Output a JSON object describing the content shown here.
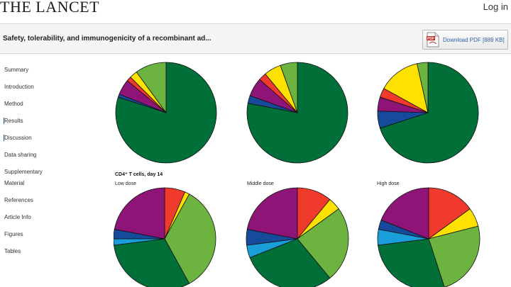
{
  "header": {
    "logo": "THE LANCET",
    "login_label": "Log in"
  },
  "article": {
    "title": "Safety, tolerability, and immunogenicity of a recombinant ad...",
    "pdf_label": "Download PDF [889 KB]"
  },
  "sidebar": {
    "items": [
      {
        "label": "Summary"
      },
      {
        "label": "Introduction"
      },
      {
        "label": "Method"
      },
      {
        "label": "Results"
      },
      {
        "label": "Discussion"
      },
      {
        "label": "Data sharing"
      },
      {
        "label": "Supplementary"
      },
      {
        "label": "Material"
      },
      {
        "label": "References"
      },
      {
        "label": "Article Info"
      },
      {
        "label": "Figures"
      },
      {
        "label": "Tables"
      }
    ]
  },
  "figure": {
    "section_label": "CD4⁺ T cells, day 14",
    "panel_labels": [
      "Low dose",
      "Middle dose",
      "High dose"
    ],
    "colors": {
      "dark_green": "#007038",
      "light_green": "#6db33f",
      "yellow": "#ffe100",
      "red": "#ef3a2c",
      "purple": "#8e1477",
      "blue": "#164a9a",
      "light_blue": "#1a9ed9"
    }
  },
  "chart_data": [
    {
      "type": "pie",
      "slices": [
        {
          "color": "dark_green",
          "value": 0.8
        },
        {
          "color": "blue",
          "value": 0.01
        },
        {
          "color": "purple",
          "value": 0.05
        },
        {
          "color": "red",
          "value": 0.015
        },
        {
          "color": "yellow",
          "value": 0.025
        },
        {
          "color": "light_green",
          "value": 0.1
        }
      ]
    },
    {
      "type": "pie",
      "slices": [
        {
          "color": "dark_green",
          "value": 0.78
        },
        {
          "color": "blue",
          "value": 0.025
        },
        {
          "color": "purple",
          "value": 0.06
        },
        {
          "color": "red",
          "value": 0.025
        },
        {
          "color": "yellow",
          "value": 0.055
        },
        {
          "color": "light_green",
          "value": 0.055
        }
      ]
    },
    {
      "type": "pie",
      "slices": [
        {
          "color": "dark_green",
          "value": 0.7
        },
        {
          "color": "blue",
          "value": 0.055
        },
        {
          "color": "purple",
          "value": 0.045
        },
        {
          "color": "red",
          "value": 0.03
        },
        {
          "color": "yellow",
          "value": 0.135
        },
        {
          "color": "light_green",
          "value": 0.035
        }
      ]
    },
    {
      "type": "pie",
      "slices": [
        {
          "color": "red",
          "value": 0.065
        },
        {
          "color": "yellow",
          "value": 0.015
        },
        {
          "color": "light_green",
          "value": 0.34
        },
        {
          "color": "dark_green",
          "value": 0.31
        },
        {
          "color": "light_blue",
          "value": 0.02
        },
        {
          "color": "blue",
          "value": 0.03
        },
        {
          "color": "purple",
          "value": 0.22
        }
      ]
    },
    {
      "type": "pie",
      "slices": [
        {
          "color": "red",
          "value": 0.11
        },
        {
          "color": "yellow",
          "value": 0.04
        },
        {
          "color": "light_green",
          "value": 0.24
        },
        {
          "color": "dark_green",
          "value": 0.3
        },
        {
          "color": "light_blue",
          "value": 0.04
        },
        {
          "color": "blue",
          "value": 0.05
        },
        {
          "color": "purple",
          "value": 0.22
        }
      ]
    },
    {
      "type": "pie",
      "slices": [
        {
          "color": "red",
          "value": 0.15
        },
        {
          "color": "yellow",
          "value": 0.06
        },
        {
          "color": "light_green",
          "value": 0.24
        },
        {
          "color": "dark_green",
          "value": 0.28
        },
        {
          "color": "light_blue",
          "value": 0.05
        },
        {
          "color": "blue",
          "value": 0.03
        },
        {
          "color": "purple",
          "value": 0.19
        }
      ]
    }
  ]
}
